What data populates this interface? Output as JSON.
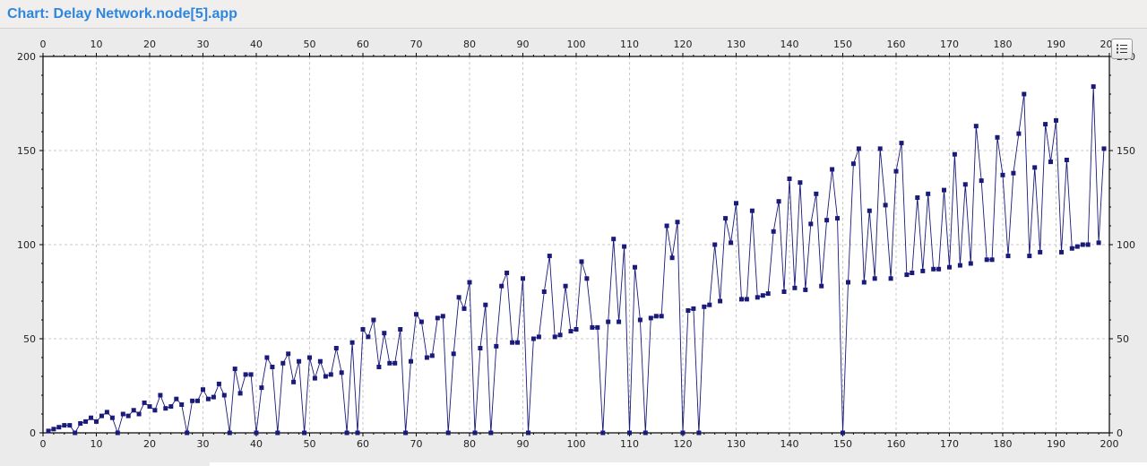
{
  "window": {
    "title": "Chart: Delay Network.node[5].app"
  },
  "toolbar": {
    "legend_icon": "legend-list-icon"
  },
  "colors": {
    "title": "#2f86dd",
    "series": "#1a1a7a",
    "grid": "#c8c8c8",
    "plot_background": "#ffffff"
  },
  "chart_data": {
    "type": "line",
    "title": "",
    "xlabel": "",
    "ylabel": "",
    "xlim": [
      0,
      200
    ],
    "ylim": [
      0,
      200
    ],
    "x_ticks": [
      0,
      10,
      20,
      30,
      40,
      50,
      60,
      70,
      80,
      90,
      100,
      110,
      120,
      130,
      140,
      150,
      160,
      170,
      180,
      190,
      200
    ],
    "y_ticks": [
      0,
      50,
      100,
      150,
      200
    ],
    "grid": true,
    "markers": "square",
    "series": [
      {
        "name": "",
        "x": [
          1,
          2,
          3,
          4,
          5,
          6,
          7,
          8,
          9,
          10,
          11,
          12,
          13,
          14,
          15,
          16,
          17,
          18,
          19,
          20,
          21,
          22,
          23,
          24,
          25,
          26,
          27,
          28,
          29,
          30,
          31,
          32,
          33,
          34,
          35,
          36,
          37,
          38,
          39,
          40,
          41,
          42,
          43,
          44,
          45,
          46,
          47,
          48,
          49,
          50,
          51,
          52,
          53,
          54,
          55,
          56,
          57,
          58,
          59,
          60,
          61,
          62,
          63,
          64,
          65,
          66,
          67,
          68,
          69,
          70,
          71,
          72,
          73,
          74,
          75,
          76,
          77,
          78,
          79,
          80,
          81,
          82,
          83,
          84,
          85,
          86,
          87,
          88,
          89,
          90,
          91,
          92,
          93,
          94,
          95,
          96,
          97,
          98,
          99,
          100,
          101,
          102,
          103,
          104,
          105,
          106,
          107,
          108,
          109,
          110,
          111,
          112,
          113,
          114,
          115,
          116,
          117,
          118,
          119,
          120,
          121,
          122,
          123,
          124,
          125,
          126,
          127,
          128,
          129,
          130,
          131,
          132,
          133,
          134,
          135,
          136,
          137,
          138,
          139,
          140,
          141,
          142,
          143,
          144,
          145,
          146,
          147,
          148,
          149,
          150,
          151,
          152,
          153,
          154,
          155,
          156,
          157,
          158,
          159,
          160,
          161,
          162,
          163,
          164,
          165,
          166,
          167,
          168,
          169,
          170,
          171,
          172,
          173,
          174,
          175,
          176,
          177,
          178,
          179,
          180,
          181,
          182,
          183,
          184,
          185,
          186,
          187,
          188,
          189,
          190,
          191,
          192,
          193,
          194,
          195,
          196,
          197,
          198,
          199
        ],
        "values": [
          1,
          2,
          3,
          4,
          4,
          0,
          5,
          6,
          8,
          6,
          9,
          11,
          8,
          0,
          10,
          9,
          12,
          10,
          16,
          14,
          12,
          20,
          13,
          14,
          18,
          15,
          0,
          17,
          17,
          23,
          18,
          19,
          26,
          20,
          0,
          34,
          21,
          31,
          31,
          0,
          24,
          40,
          35,
          0,
          37,
          42,
          27,
          38,
          0,
          40,
          29,
          38,
          30,
          31,
          45,
          32,
          0,
          48,
          0,
          55,
          51,
          60,
          35,
          53,
          37,
          37,
          55,
          0,
          38,
          63,
          59,
          40,
          41,
          61,
          62,
          0,
          42,
          72,
          66,
          80,
          0,
          45,
          68,
          0,
          46,
          78,
          85,
          48,
          48,
          82,
          0,
          50,
          51,
          75,
          94,
          51,
          52,
          78,
          54,
          55,
          91,
          82,
          56,
          56,
          0,
          59,
          103,
          59,
          99,
          0,
          88,
          60,
          0,
          61,
          62,
          62,
          110,
          93,
          112,
          0,
          65,
          66,
          0,
          67,
          68,
          100,
          70,
          114,
          101,
          122,
          71,
          71,
          118,
          72,
          73,
          74,
          107,
          123,
          75,
          135,
          77,
          133,
          76,
          111,
          127,
          78,
          113,
          140,
          114,
          0,
          80,
          143,
          151,
          80,
          118,
          82,
          151,
          121,
          82,
          139,
          154,
          84,
          85,
          125,
          86,
          127,
          87,
          87,
          129,
          88,
          148,
          89,
          132,
          90,
          163,
          134,
          92,
          92,
          157,
          137,
          94,
          138,
          159,
          180,
          94,
          141,
          96,
          164,
          144,
          166,
          96,
          145,
          98,
          99,
          100,
          100,
          184,
          101,
          151
        ]
      }
    ]
  }
}
